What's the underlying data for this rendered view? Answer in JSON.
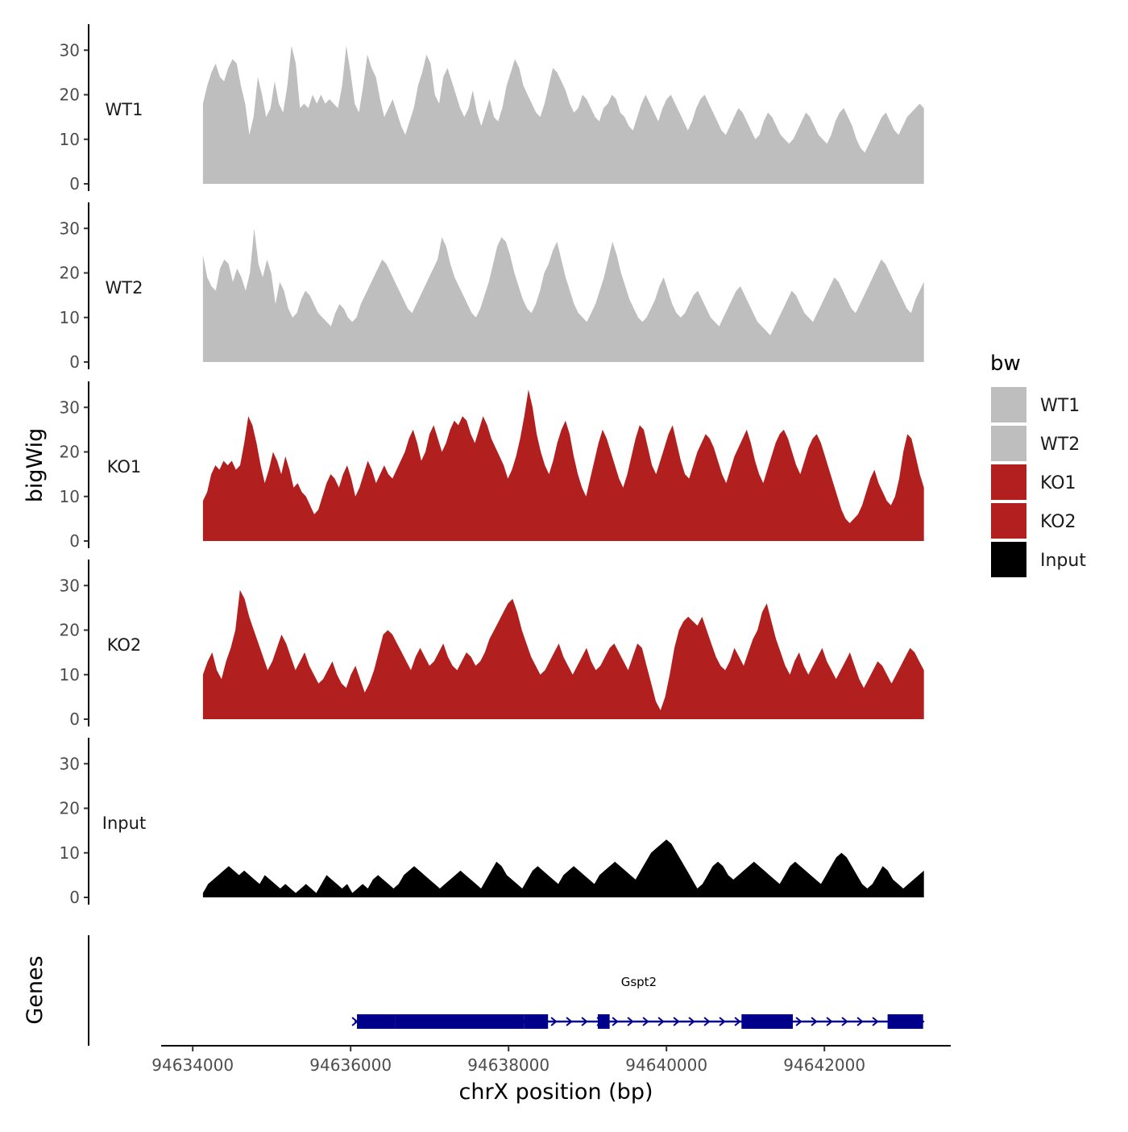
{
  "chart_data": {
    "type": "area",
    "title": "",
    "ylabel": "bigWig",
    "genes_label": "Genes",
    "xlabel": "chrX position (bp)",
    "ylim": [
      0,
      35
    ],
    "y_ticks": [
      0,
      10,
      20,
      30
    ],
    "x_range": [
      94633600,
      94643600
    ],
    "x_ticks": [
      94634000,
      94636000,
      94638000,
      94640000,
      94642000
    ],
    "x_tick_labels": [
      "94634000",
      "94636000",
      "94638000",
      "94640000",
      "94642000"
    ],
    "data_x_start": 94634130,
    "data_x_end": 94643260,
    "legend": {
      "title": "bw",
      "entries": [
        {
          "label": "WT1",
          "color": "#BEBEBE"
        },
        {
          "label": "WT2",
          "color": "#BEBEBE"
        },
        {
          "label": "KO1",
          "color": "#B21F1F"
        },
        {
          "label": "KO2",
          "color": "#B21F1F"
        },
        {
          "label": "Input",
          "color": "#000000"
        }
      ]
    },
    "series": [
      {
        "name": "WT1",
        "color": "#BEBEBE",
        "values": [
          18,
          22,
          25,
          27,
          24,
          23,
          26,
          28,
          27,
          22,
          18,
          11,
          15,
          24,
          20,
          15,
          17,
          23,
          18,
          16,
          22,
          31,
          27,
          17,
          18,
          17,
          20,
          18,
          20,
          18,
          19,
          18,
          17,
          22,
          31,
          25,
          18,
          16,
          22,
          29,
          26,
          24,
          19,
          15,
          17,
          19,
          16,
          13,
          11,
          14,
          17,
          22,
          25,
          29,
          27,
          20,
          18,
          24,
          26,
          23,
          20,
          17,
          15,
          17,
          21,
          16,
          13,
          16,
          19,
          15,
          14,
          17,
          22,
          25,
          28,
          26,
          22,
          20,
          18,
          16,
          15,
          18,
          22,
          26,
          25,
          23,
          21,
          18,
          16,
          17,
          20,
          19,
          17,
          15,
          14,
          17,
          18,
          20,
          19,
          16,
          15,
          13,
          12,
          15,
          18,
          20,
          18,
          16,
          14,
          17,
          19,
          20,
          18,
          16,
          14,
          12,
          14,
          17,
          19,
          20,
          18,
          16,
          14,
          12,
          11,
          13,
          15,
          17,
          16,
          14,
          12,
          10,
          11,
          14,
          16,
          15,
          13,
          11,
          10,
          9,
          10,
          12,
          14,
          16,
          15,
          13,
          11,
          10,
          9,
          11,
          14,
          16,
          17,
          15,
          13,
          10,
          8,
          7,
          9,
          11,
          13,
          15,
          16,
          14,
          12,
          11,
          13,
          15,
          16,
          17,
          18,
          17
        ]
      },
      {
        "name": "WT2",
        "color": "#BEBEBE",
        "values": [
          24,
          19,
          17,
          16,
          21,
          23,
          22,
          18,
          21,
          19,
          16,
          20,
          30,
          22,
          19,
          23,
          20,
          13,
          18,
          16,
          12,
          10,
          11,
          14,
          16,
          15,
          13,
          11,
          10,
          9,
          8,
          11,
          13,
          12,
          10,
          9,
          10,
          13,
          15,
          17,
          19,
          21,
          23,
          22,
          20,
          18,
          16,
          14,
          12,
          11,
          13,
          15,
          17,
          19,
          21,
          23,
          28,
          26,
          22,
          19,
          17,
          15,
          13,
          11,
          10,
          12,
          15,
          18,
          22,
          26,
          28,
          27,
          24,
          20,
          17,
          14,
          12,
          11,
          13,
          16,
          20,
          22,
          25,
          27,
          23,
          19,
          16,
          13,
          11,
          10,
          9,
          11,
          13,
          16,
          19,
          23,
          27,
          24,
          20,
          17,
          14,
          12,
          10,
          9,
          10,
          12,
          14,
          17,
          19,
          16,
          13,
          11,
          10,
          11,
          13,
          15,
          16,
          14,
          12,
          10,
          9,
          8,
          10,
          12,
          14,
          16,
          17,
          15,
          13,
          11,
          9,
          8,
          7,
          6,
          8,
          10,
          12,
          14,
          16,
          15,
          13,
          11,
          10,
          9,
          11,
          13,
          15,
          17,
          19,
          18,
          16,
          14,
          12,
          11,
          13,
          15,
          17,
          19,
          21,
          23,
          22,
          20,
          18,
          16,
          14,
          12,
          11,
          14,
          16,
          18
        ]
      },
      {
        "name": "KO1",
        "color": "#B21F1F",
        "values": [
          9,
          11,
          15,
          17,
          16,
          18,
          17,
          18,
          16,
          17,
          22,
          28,
          26,
          22,
          17,
          13,
          16,
          20,
          18,
          15,
          19,
          16,
          12,
          13,
          11,
          10,
          8,
          6,
          7,
          10,
          13,
          15,
          14,
          12,
          15,
          17,
          14,
          10,
          12,
          15,
          18,
          16,
          13,
          15,
          17,
          15,
          14,
          16,
          18,
          20,
          23,
          25,
          22,
          18,
          20,
          24,
          26,
          23,
          20,
          22,
          25,
          27,
          26,
          28,
          27,
          24,
          22,
          25,
          28,
          26,
          23,
          21,
          19,
          17,
          14,
          16,
          19,
          23,
          28,
          34,
          30,
          24,
          20,
          17,
          15,
          18,
          22,
          25,
          27,
          24,
          19,
          15,
          12,
          10,
          14,
          18,
          22,
          25,
          23,
          20,
          17,
          14,
          12,
          15,
          19,
          23,
          26,
          25,
          21,
          17,
          15,
          18,
          21,
          24,
          26,
          22,
          18,
          15,
          14,
          17,
          20,
          22,
          24,
          23,
          21,
          18,
          15,
          13,
          16,
          19,
          21,
          23,
          25,
          22,
          18,
          15,
          13,
          16,
          19,
          22,
          24,
          25,
          23,
          20,
          17,
          15,
          18,
          21,
          23,
          24,
          22,
          19,
          16,
          13,
          10,
          7,
          5,
          4,
          5,
          6,
          8,
          11,
          14,
          16,
          13,
          11,
          9,
          8,
          10,
          14,
          20,
          24,
          23,
          19,
          15,
          12
        ]
      },
      {
        "name": "KO2",
        "color": "#B21F1F",
        "values": [
          10,
          13,
          15,
          11,
          9,
          13,
          16,
          20,
          29,
          27,
          23,
          20,
          17,
          14,
          11,
          13,
          16,
          19,
          17,
          14,
          11,
          13,
          15,
          12,
          10,
          8,
          9,
          11,
          13,
          10,
          8,
          7,
          10,
          12,
          9,
          6,
          8,
          11,
          15,
          19,
          20,
          19,
          17,
          15,
          13,
          11,
          14,
          16,
          14,
          12,
          13,
          15,
          17,
          14,
          12,
          11,
          13,
          15,
          14,
          12,
          13,
          15,
          18,
          20,
          22,
          24,
          26,
          27,
          24,
          20,
          17,
          14,
          12,
          10,
          11,
          13,
          15,
          17,
          14,
          12,
          10,
          12,
          14,
          16,
          13,
          11,
          12,
          14,
          16,
          17,
          15,
          13,
          11,
          14,
          17,
          16,
          12,
          8,
          4,
          2,
          5,
          10,
          16,
          20,
          22,
          23,
          22,
          21,
          23,
          20,
          17,
          14,
          12,
          11,
          13,
          16,
          14,
          12,
          15,
          18,
          20,
          24,
          26,
          22,
          18,
          15,
          12,
          10,
          13,
          15,
          12,
          10,
          12,
          14,
          16,
          13,
          11,
          9,
          11,
          13,
          15,
          12,
          9,
          7,
          9,
          11,
          13,
          12,
          10,
          8,
          10,
          12,
          14,
          16,
          15,
          13,
          11
        ]
      },
      {
        "name": "Input",
        "color": "#000000",
        "values": [
          1,
          3,
          4,
          5,
          6,
          7,
          6,
          5,
          6,
          5,
          4,
          3,
          5,
          4,
          3,
          2,
          3,
          2,
          1,
          2,
          3,
          2,
          1,
          3,
          5,
          4,
          3,
          2,
          3,
          1,
          2,
          3,
          2,
          4,
          5,
          4,
          3,
          2,
          3,
          5,
          6,
          7,
          6,
          5,
          4,
          3,
          2,
          3,
          4,
          5,
          6,
          5,
          4,
          3,
          2,
          4,
          6,
          8,
          7,
          5,
          4,
          3,
          2,
          4,
          6,
          7,
          6,
          5,
          4,
          3,
          5,
          6,
          7,
          6,
          5,
          4,
          3,
          5,
          6,
          7,
          8,
          7,
          6,
          5,
          4,
          6,
          8,
          10,
          11,
          12,
          13,
          12,
          10,
          8,
          6,
          4,
          2,
          3,
          5,
          7,
          8,
          7,
          5,
          4,
          5,
          6,
          7,
          8,
          7,
          6,
          5,
          4,
          3,
          5,
          7,
          8,
          7,
          6,
          5,
          4,
          3,
          5,
          7,
          9,
          10,
          9,
          7,
          5,
          3,
          2,
          3,
          5,
          7,
          6,
          4,
          3,
          2,
          3,
          4,
          5,
          6
        ]
      }
    ],
    "gene_track": {
      "name": "Gspt2",
      "strand": "+",
      "start": 94636050,
      "end": 94643250,
      "exons": [
        {
          "start": 94636080,
          "end": 94636560
        },
        {
          "start": 94636560,
          "end": 94638200
        },
        {
          "start": 94638200,
          "end": 94638500
        },
        {
          "start": 94639130,
          "end": 94639280
        },
        {
          "start": 94640950,
          "end": 94641600
        },
        {
          "start": 94642800,
          "end": 94643250
        }
      ]
    }
  }
}
